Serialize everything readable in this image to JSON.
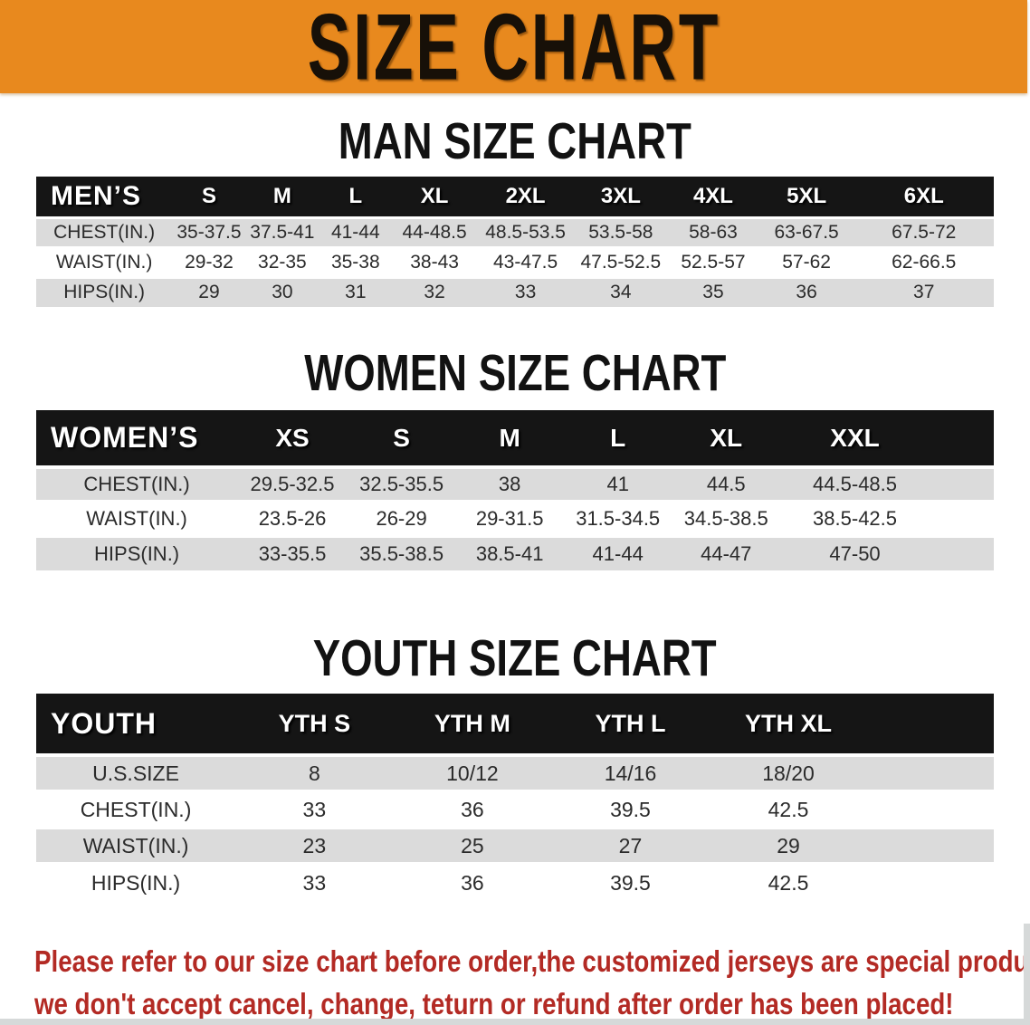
{
  "banner": {
    "title": "SIZE CHART",
    "bg_color": "#E8891E",
    "text_color": "#171008"
  },
  "sections": [
    {
      "title": "MAN SIZE CHART",
      "table": {
        "header_label": "MEN’S",
        "columns": [
          "S",
          "M",
          "L",
          "XL",
          "2XL",
          "3XL",
          "4XL",
          "5XL",
          "6XL"
        ],
        "rows": [
          {
            "label": "CHEST(IN.)",
            "values": [
              "35-37.5",
              "37.5-41",
              "41-44",
              "44-48.5",
              "48.5-53.5",
              "53.5-58",
              "58-63",
              "63-67.5",
              "67.5-72"
            ]
          },
          {
            "label": "WAIST(IN.)",
            "values": [
              "29-32",
              "32-35",
              "35-38",
              "38-43",
              "43-47.5",
              "47.5-52.5",
              "52.5-57",
              "57-62",
              "62-66.5"
            ]
          },
          {
            "label": "HIPS(IN.)",
            "values": [
              "29",
              "30",
              "31",
              "32",
              "33",
              "34",
              "35",
              "36",
              "37"
            ]
          }
        ]
      }
    },
    {
      "title": "WOMEN SIZE CHART",
      "table": {
        "header_label": "WOMEN’S",
        "columns": [
          "XS",
          "S",
          "M",
          "L",
          "XL",
          "XXL"
        ],
        "rows": [
          {
            "label": "CHEST(IN.)",
            "values": [
              "29.5-32.5",
              "32.5-35.5",
              "38",
              "41",
              "44.5",
              "44.5-48.5"
            ]
          },
          {
            "label": "WAIST(IN.)",
            "values": [
              "23.5-26",
              "26-29",
              "29-31.5",
              "31.5-34.5",
              "34.5-38.5",
              "38.5-42.5"
            ]
          },
          {
            "label": "HIPS(IN.)",
            "values": [
              "33-35.5",
              "35.5-38.5",
              "38.5-41",
              "41-44",
              "44-47",
              "47-50"
            ]
          }
        ]
      }
    },
    {
      "title": "YOUTH SIZE CHART",
      "table": {
        "header_label": "YOUTH",
        "columns": [
          "YTH S",
          "YTH M",
          "YTH L",
          "YTH XL"
        ],
        "rows": [
          {
            "label": "U.S.SIZE",
            "values": [
              "8",
              "10/12",
              "14/16",
              "18/20"
            ]
          },
          {
            "label": "CHEST(IN.)",
            "values": [
              "33",
              "36",
              "39.5",
              "42.5"
            ]
          },
          {
            "label": "WAIST(IN.)",
            "values": [
              "23",
              "25",
              "27",
              "29"
            ]
          },
          {
            "label": "HIPS(IN.)",
            "values": [
              "33",
              "36",
              "39.5",
              "42.5"
            ]
          }
        ]
      }
    }
  ],
  "footer": {
    "line1": "Please refer to our size chart before order,the customized jerseys are special products,",
    "line2": "we don't accept cancel, change, teturn or refund after order has been placed!",
    "text_color": "#B32A24"
  },
  "colors": {
    "table_header_band": "#151515",
    "row_stripe_gray": "#DBDBDB",
    "row_plain_white": "#FFFFFF",
    "table_text": "#2B2B2B"
  }
}
